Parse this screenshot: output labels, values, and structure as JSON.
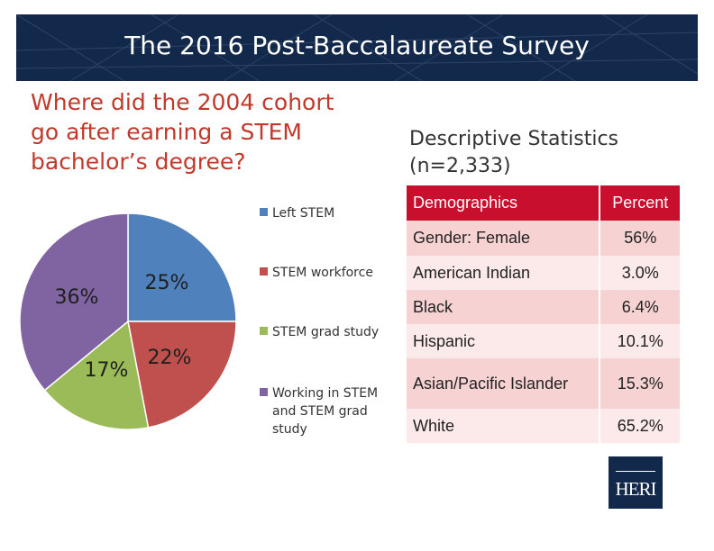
{
  "header": {
    "title": "The 2016 Post-Baccalaureate Survey"
  },
  "question": {
    "lines": [
      "Where did the 2004 cohort",
      "go after earning a STEM",
      "bachelor’s degree?"
    ]
  },
  "descriptive": {
    "lines": [
      "Descriptive Statistics",
      "(n=2,333)"
    ]
  },
  "chart_data": {
    "type": "pie",
    "slices": [
      {
        "name": "Left STEM",
        "value": 25,
        "label": "25%",
        "color": "#4f81bd"
      },
      {
        "name": "STEM workforce",
        "value": 22,
        "label": "22%",
        "color": "#c0504d"
      },
      {
        "name": "STEM grad study",
        "value": 17,
        "label": "17%",
        "color": "#9bbb59"
      },
      {
        "name": "Working in STEM and STEM grad study",
        "value": 36,
        "label": "36%",
        "color": "#8064a2"
      }
    ],
    "legend_position": "right"
  },
  "table": {
    "headers": [
      "Demographics",
      "Percent"
    ],
    "rows": [
      [
        "Gender: Female",
        "56%"
      ],
      [
        "American Indian",
        "3.0%"
      ],
      [
        "Black",
        "6.4%"
      ],
      [
        "Hispanic",
        "10.1%"
      ],
      [
        "Asian/Pacific Islander",
        "15.3%"
      ],
      [
        "White",
        "65.2%"
      ]
    ],
    "colors": {
      "header": "#c8102e",
      "row_dark": "#f7d2d2",
      "row_light": "#fce9e9"
    }
  },
  "logo": {
    "text": "HERI"
  },
  "colors": {
    "navy": "#13294b",
    "question_red": "#c0392b"
  }
}
